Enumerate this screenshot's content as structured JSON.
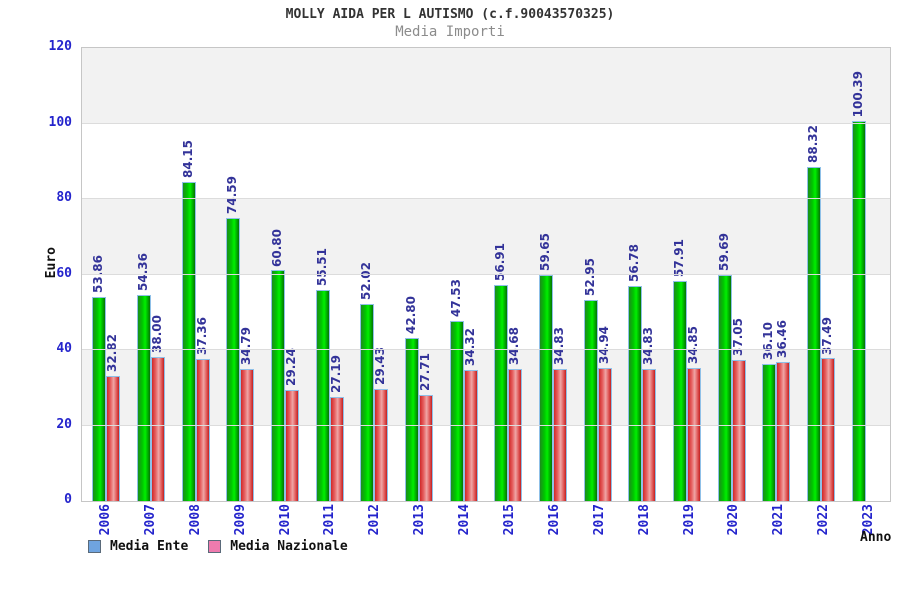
{
  "header": {
    "title": "MOLLY AIDA PER L AUTISMO (c.f.90043570325)",
    "subtitle": "Media Importi"
  },
  "axes": {
    "y_label": "Euro",
    "x_label": "Anno"
  },
  "legend": {
    "position": "bottom-left",
    "items": [
      {
        "label": "Media Ente",
        "swatch_color": "#6fa4e0"
      },
      {
        "label": "Media Nazionale",
        "swatch_color": "#ee7bae"
      }
    ]
  },
  "colors": {
    "bar_green_bright": "#00ef00",
    "bar_green_dark": "#077307",
    "bar_red": "#d02828",
    "bar_red_light": "#efa6a6",
    "bar_border": "#8fc0e8",
    "value_label": "#333399",
    "axis_label_blue": "#2424cc",
    "band_gray": "#f2f2f2",
    "title_color": "#333333",
    "subtitle_color": "#8c8c8c"
  },
  "chart_data": {
    "type": "bar",
    "title": "MOLLY AIDA PER L AUTISMO (c.f.90043570325)",
    "subtitle": "Media Importi",
    "xlabel": "Anno",
    "ylabel": "Euro",
    "ylim": [
      0,
      120
    ],
    "y_ticks": [
      0,
      20,
      40,
      60,
      80,
      100,
      120
    ],
    "grid": "horizontal-bands",
    "legend_position": "bottom-left",
    "categories": [
      "2006",
      "2007",
      "2008",
      "2009",
      "2010",
      "2011",
      "2012",
      "2013",
      "2014",
      "2015",
      "2016",
      "2017",
      "2018",
      "2019",
      "2020",
      "2021",
      "2022",
      "2023"
    ],
    "series": [
      {
        "name": "Media Ente",
        "values": [
          53.86,
          54.36,
          84.15,
          74.59,
          60.8,
          55.51,
          52.02,
          42.8,
          47.53,
          56.91,
          59.65,
          52.95,
          56.78,
          57.91,
          59.69,
          36.1,
          88.32,
          100.39
        ]
      },
      {
        "name": "Media Nazionale",
        "values": [
          32.82,
          38.0,
          37.36,
          34.79,
          29.24,
          27.19,
          29.43,
          27.71,
          34.32,
          34.68,
          34.83,
          34.94,
          34.83,
          34.85,
          37.05,
          36.46,
          37.49,
          null
        ]
      }
    ]
  }
}
